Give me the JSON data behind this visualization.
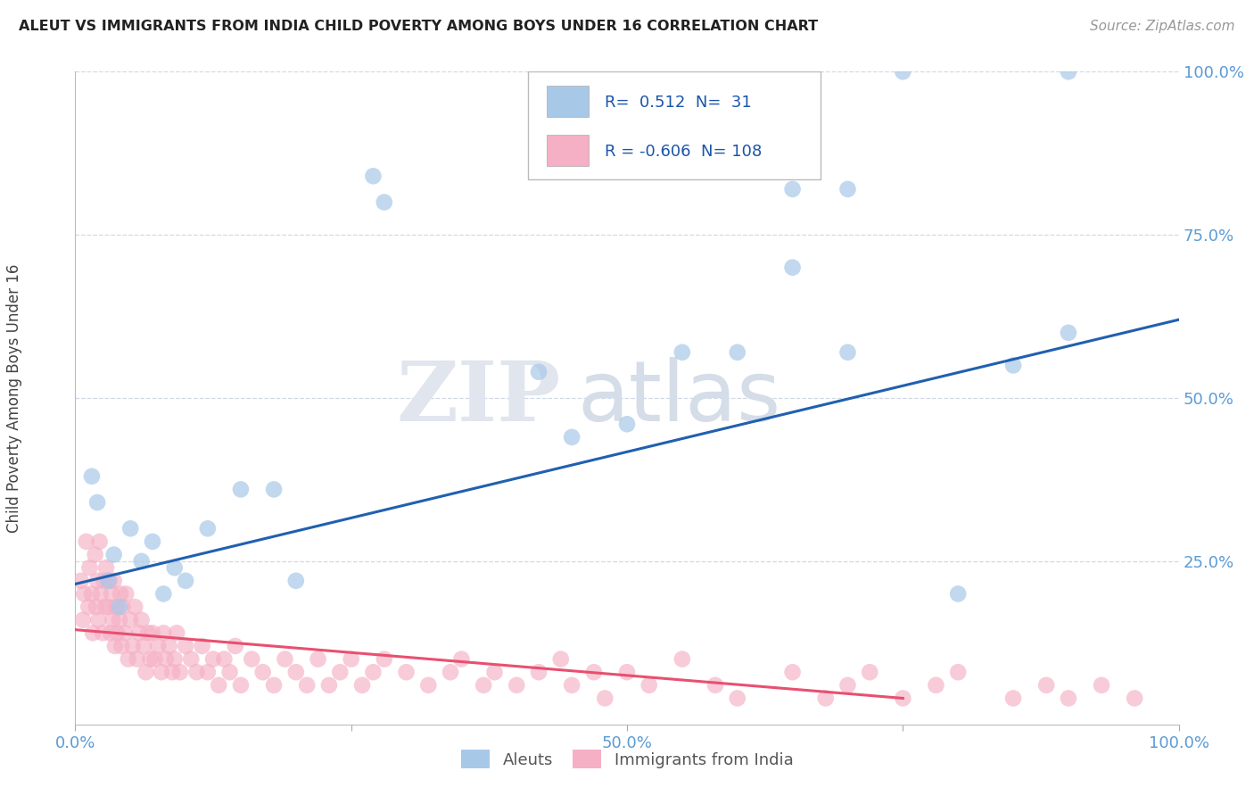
{
  "title": "ALEUT VS IMMIGRANTS FROM INDIA CHILD POVERTY AMONG BOYS UNDER 16 CORRELATION CHART",
  "source": "Source: ZipAtlas.com",
  "ylabel": "Child Poverty Among Boys Under 16",
  "xlim": [
    0,
    1
  ],
  "ylim": [
    0,
    1
  ],
  "xticks": [
    0.0,
    0.25,
    0.5,
    0.75,
    1.0
  ],
  "xticklabels": [
    "0.0%",
    "",
    "50.0%",
    "",
    "100.0%"
  ],
  "ytick_vals": [
    0.0,
    0.25,
    0.5,
    0.75,
    1.0
  ],
  "yticklabels_right": [
    "",
    "25.0%",
    "50.0%",
    "75.0%",
    "100.0%"
  ],
  "aleut_color": "#a8c8e8",
  "india_color": "#f5b0c5",
  "aleut_line_color": "#2060b0",
  "india_line_color": "#e85070",
  "legend_R_aleut": "0.512",
  "legend_N_aleut": "31",
  "legend_R_india": "-0.606",
  "legend_N_india": "108",
  "watermark_zip": "ZIP",
  "watermark_atlas": "atlas",
  "background_color": "#ffffff",
  "title_color": "#222222",
  "axis_tick_color": "#5b9bd5",
  "grid_color": "#d0d8e8",
  "aleut_x": [
    0.27,
    0.28,
    0.015,
    0.02,
    0.03,
    0.035,
    0.04,
    0.05,
    0.06,
    0.07,
    0.08,
    0.09,
    0.1,
    0.12,
    0.15,
    0.18,
    0.2,
    0.45,
    0.5,
    0.55,
    0.6,
    0.65,
    0.7,
    0.75,
    0.8,
    0.85,
    0.9,
    0.42,
    0.65,
    0.7,
    0.9
  ],
  "aleut_y": [
    0.84,
    0.8,
    0.38,
    0.34,
    0.22,
    0.26,
    0.18,
    0.3,
    0.25,
    0.28,
    0.2,
    0.24,
    0.22,
    0.3,
    0.36,
    0.36,
    0.22,
    0.44,
    0.46,
    0.57,
    0.57,
    0.7,
    0.57,
    1.0,
    0.2,
    0.55,
    0.6,
    0.54,
    0.82,
    0.82,
    1.0
  ],
  "india_x": [
    0.005,
    0.007,
    0.008,
    0.01,
    0.012,
    0.013,
    0.015,
    0.016,
    0.018,
    0.019,
    0.02,
    0.021,
    0.022,
    0.023,
    0.025,
    0.026,
    0.027,
    0.028,
    0.03,
    0.031,
    0.032,
    0.033,
    0.034,
    0.035,
    0.036,
    0.037,
    0.038,
    0.04,
    0.041,
    0.042,
    0.043,
    0.045,
    0.046,
    0.048,
    0.05,
    0.052,
    0.054,
    0.056,
    0.058,
    0.06,
    0.062,
    0.064,
    0.066,
    0.068,
    0.07,
    0.072,
    0.075,
    0.078,
    0.08,
    0.082,
    0.085,
    0.088,
    0.09,
    0.092,
    0.095,
    0.1,
    0.105,
    0.11,
    0.115,
    0.12,
    0.125,
    0.13,
    0.135,
    0.14,
    0.145,
    0.15,
    0.16,
    0.17,
    0.18,
    0.19,
    0.2,
    0.21,
    0.22,
    0.23,
    0.24,
    0.25,
    0.26,
    0.27,
    0.28,
    0.3,
    0.32,
    0.34,
    0.35,
    0.37,
    0.38,
    0.4,
    0.42,
    0.44,
    0.45,
    0.47,
    0.48,
    0.5,
    0.52,
    0.55,
    0.58,
    0.6,
    0.65,
    0.68,
    0.7,
    0.72,
    0.75,
    0.78,
    0.8,
    0.85,
    0.88,
    0.9,
    0.93,
    0.96
  ],
  "india_y": [
    0.22,
    0.16,
    0.2,
    0.28,
    0.18,
    0.24,
    0.2,
    0.14,
    0.26,
    0.18,
    0.22,
    0.16,
    0.28,
    0.2,
    0.14,
    0.22,
    0.18,
    0.24,
    0.18,
    0.22,
    0.14,
    0.2,
    0.16,
    0.22,
    0.12,
    0.18,
    0.14,
    0.16,
    0.2,
    0.12,
    0.18,
    0.14,
    0.2,
    0.1,
    0.16,
    0.12,
    0.18,
    0.1,
    0.14,
    0.16,
    0.12,
    0.08,
    0.14,
    0.1,
    0.14,
    0.1,
    0.12,
    0.08,
    0.14,
    0.1,
    0.12,
    0.08,
    0.1,
    0.14,
    0.08,
    0.12,
    0.1,
    0.08,
    0.12,
    0.08,
    0.1,
    0.06,
    0.1,
    0.08,
    0.12,
    0.06,
    0.1,
    0.08,
    0.06,
    0.1,
    0.08,
    0.06,
    0.1,
    0.06,
    0.08,
    0.1,
    0.06,
    0.08,
    0.1,
    0.08,
    0.06,
    0.08,
    0.1,
    0.06,
    0.08,
    0.06,
    0.08,
    0.1,
    0.06,
    0.08,
    0.04,
    0.08,
    0.06,
    0.1,
    0.06,
    0.04,
    0.08,
    0.04,
    0.06,
    0.08,
    0.04,
    0.06,
    0.08,
    0.04,
    0.06,
    0.04,
    0.06,
    0.04
  ],
  "aleut_trendline_x": [
    0.0,
    1.0
  ],
  "aleut_trendline_y": [
    0.215,
    0.62
  ],
  "india_trendline_x": [
    0.0,
    0.75
  ],
  "india_trendline_y": [
    0.145,
    0.04
  ]
}
